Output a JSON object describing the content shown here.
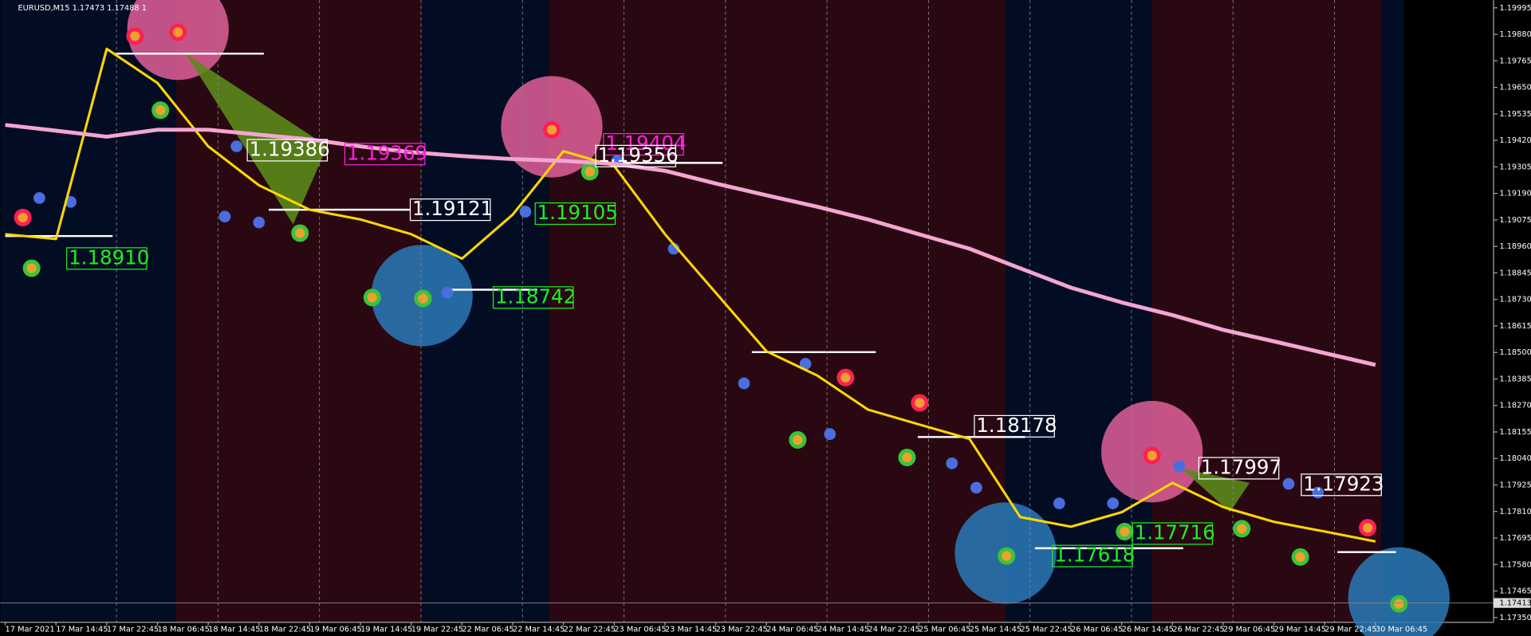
{
  "chart_data": {
    "type": "line",
    "title": "EURUSD,M15  1.17473 1.17488 1",
    "categories": [
      "17 Mar 2021",
      "17 Mar 14:45",
      "17 Mar 22:45",
      "18 Mar 06:45",
      "18 Mar 14:45",
      "18 Mar 22:45",
      "19 Mar 06:45",
      "19 Mar 14:45",
      "19 Mar 22:45",
      "22 Mar 06:45",
      "22 Mar 14:45",
      "22 Mar 22:45",
      "23 Mar 06:45",
      "23 Mar 14:45",
      "23 Mar 22:45",
      "24 Mar 06:45",
      "24 Mar 14:45",
      "24 Mar 22:45",
      "25 Mar 06:45",
      "25 Mar 14:45",
      "25 Mar 22:45",
      "26 Mar 06:45",
      "26 Mar 14:45",
      "26 Mar 22:45",
      "29 Mar 06:45",
      "29 Mar 14:45",
      "29 Mar 22:45",
      "30 Mar 06:45"
    ],
    "series": [
      {
        "color": "#ffd700",
        "values": [
          1.19013,
          1.18992,
          1.19817,
          1.19669,
          1.19394,
          1.19225,
          1.19119,
          1.19077,
          1.19013,
          1.18907,
          1.19098,
          1.19373,
          1.19309,
          1.19013,
          1.18759,
          1.18505,
          1.184,
          1.18252,
          1.18188,
          1.18125,
          1.17786,
          1.17744,
          1.17807,
          1.17934,
          1.17829,
          1.17765,
          1.17723,
          1.1768
        ]
      },
      {
        "color": "#f4a6d0",
        "values": [
          1.19487,
          1.19462,
          1.19436,
          1.19466,
          1.19466,
          1.19445,
          1.19424,
          1.19394,
          1.19369,
          1.19352,
          1.19339,
          1.19331,
          1.19318,
          1.19288,
          1.19233,
          1.19182,
          1.19132,
          1.19077,
          1.19013,
          1.1895,
          1.18865,
          1.18781,
          1.18717,
          1.18662,
          1.18598,
          1.18548,
          1.18497,
          1.18446
        ]
      }
    ],
    "ylim": [
      1.17329,
      1.20029
    ],
    "yticks": [
      1.19995,
      {
        "value": 1.1988,
        "label": "1.19880"
      },
      1.19765,
      {
        "value": 1.1965,
        "label": "1.19650"
      },
      1.19535,
      {
        "value": 1.1942,
        "label": "1.19420"
      },
      1.19305,
      {
        "value": 1.1919,
        "label": "1.19190"
      },
      1.19075,
      {
        "value": 1.1896,
        "label": "1.18960"
      },
      1.18845,
      {
        "value": 1.1873,
        "label": "1.18730"
      },
      1.18615,
      {
        "value": 1.185,
        "label": "1.18500"
      },
      1.18385,
      {
        "value": 1.1827,
        "label": "1.18270"
      },
      1.18155,
      {
        "value": 1.1804,
        "label": "1.18040"
      },
      1.17925,
      {
        "value": 1.1781,
        "label": "1.17810"
      },
      1.17695,
      {
        "value": 1.1758,
        "label": "1.17580"
      },
      1.17465,
      {
        "value": 1.1735,
        "label": "1.17350"
      }
    ],
    "current_price": 1.17413,
    "grid": true,
    "annotations": [
      {
        "text": "1.18910",
        "color": "#22ee22"
      },
      {
        "text": "1.19386",
        "color": "#ffffff"
      },
      {
        "text": "1.19369",
        "color": "#ff22dd"
      },
      {
        "text": "1.19121",
        "color": "#ffffff"
      },
      {
        "text": "1.19105",
        "color": "#22ee22"
      },
      {
        "text": "1.18742",
        "color": "#22ee22"
      },
      {
        "text": "1.19404",
        "color": "#ff22dd"
      },
      {
        "text": "1.19356",
        "color": "#ffffff"
      },
      {
        "text": "1.18178",
        "color": "#ffffff"
      },
      {
        "text": "1.17997",
        "color": "#ffffff"
      },
      {
        "text": "1.17923",
        "color": "#ffffff"
      },
      {
        "text": "1.17716",
        "color": "#22ee22"
      },
      {
        "text": "1.17618",
        "color": "#22ee22"
      }
    ]
  }
}
